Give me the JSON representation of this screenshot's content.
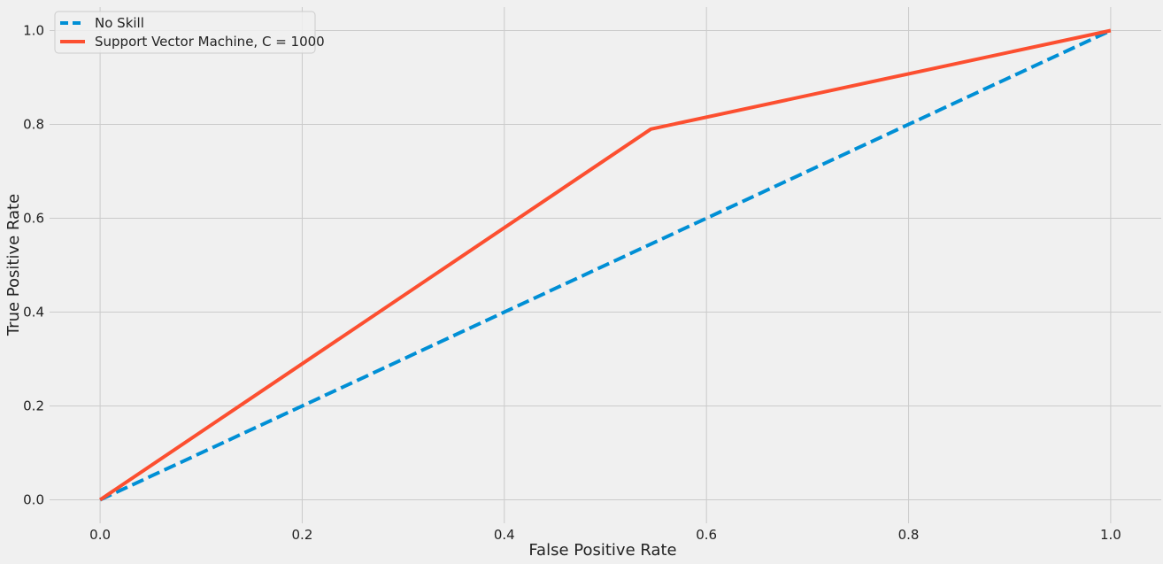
{
  "chart_data": {
    "type": "line",
    "title": "",
    "xlabel": "False Positive Rate",
    "ylabel": "True Positive Rate",
    "xlim": [
      -0.05,
      1.05
    ],
    "ylim": [
      -0.05,
      1.05
    ],
    "xticks": [
      0.0,
      0.2,
      0.4,
      0.6,
      0.8,
      1.0
    ],
    "yticks": [
      0.0,
      0.2,
      0.4,
      0.6,
      0.8,
      1.0
    ],
    "xtick_labels": [
      "0.0",
      "0.2",
      "0.4",
      "0.6",
      "0.8",
      "1.0"
    ],
    "ytick_labels": [
      "0.0",
      "0.2",
      "0.4",
      "0.6",
      "0.8",
      "1.0"
    ],
    "grid": true,
    "legend_position": "top-left",
    "series": [
      {
        "name": "No Skill",
        "style": "dashed",
        "color": "#008fd5",
        "x": [
          0.0,
          1.0
        ],
        "y": [
          0.0,
          1.0
        ]
      },
      {
        "name": "Support Vector Machine, C = 1000",
        "style": "solid",
        "color": "#fc4f30",
        "x": [
          0.0,
          0.545,
          1.0
        ],
        "y": [
          0.0,
          0.79,
          1.0
        ]
      }
    ]
  }
}
